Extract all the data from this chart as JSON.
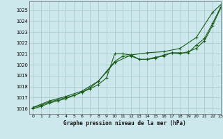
{
  "title": "Graphe pression niveau de la mer (hPa)",
  "bg_color": "#cce8ec",
  "grid_color": "#aacccc",
  "line_color": "#1a5c1a",
  "marker_color": "#1a5c1a",
  "xlim": [
    -0.5,
    23
  ],
  "ylim": [
    1015.5,
    1025.8
  ],
  "xticks": [
    0,
    1,
    2,
    3,
    4,
    5,
    6,
    7,
    8,
    9,
    10,
    11,
    12,
    13,
    14,
    15,
    16,
    17,
    18,
    19,
    20,
    21,
    22,
    23
  ],
  "yticks": [
    1016,
    1017,
    1018,
    1019,
    1020,
    1021,
    1022,
    1023,
    1024,
    1025
  ],
  "series1_x": [
    0,
    1,
    2,
    3,
    4,
    5,
    6,
    7,
    8,
    9,
    10,
    11,
    12,
    13,
    14,
    15,
    16,
    17,
    18,
    19,
    20,
    21,
    22,
    23
  ],
  "series1_y": [
    1016.1,
    1016.3,
    1016.6,
    1016.8,
    1017.0,
    1017.2,
    1017.5,
    1017.8,
    1018.2,
    1018.8,
    1021.0,
    1021.0,
    1020.9,
    1020.5,
    1020.5,
    1020.6,
    1020.9,
    1021.1,
    1021.0,
    1021.2,
    1021.5,
    1022.2,
    1023.6,
    1025.2
  ],
  "series2_x": [
    0,
    1,
    2,
    3,
    4,
    5,
    6,
    7,
    8,
    9,
    10,
    11,
    12,
    13,
    14,
    15,
    16,
    17,
    18,
    19,
    20,
    21,
    22,
    23
  ],
  "series2_y": [
    1016.0,
    1016.2,
    1016.5,
    1016.7,
    1016.9,
    1017.2,
    1017.5,
    1017.9,
    1018.5,
    1019.4,
    1020.3,
    1020.8,
    1020.8,
    1020.5,
    1020.5,
    1020.7,
    1020.8,
    1021.1,
    1021.1,
    1021.1,
    1021.8,
    1022.4,
    1023.8,
    1025.3
  ],
  "series3_x": [
    0,
    2,
    4,
    6,
    8,
    10,
    12,
    14,
    16,
    18,
    20,
    22,
    23
  ],
  "series3_y": [
    1016.1,
    1016.7,
    1017.1,
    1017.6,
    1018.5,
    1020.2,
    1020.9,
    1021.1,
    1021.2,
    1021.5,
    1022.5,
    1024.8,
    1025.5
  ]
}
